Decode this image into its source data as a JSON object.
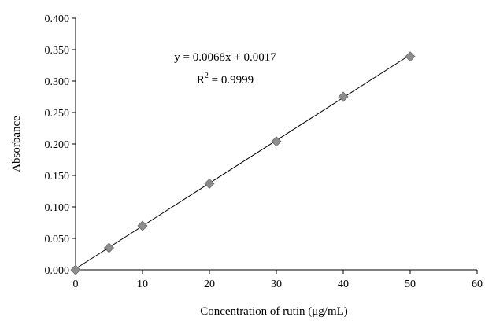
{
  "chart_data": {
    "type": "scatter",
    "xlabel": "Concentration of rutin (μg/mL)",
    "ylabel": "Absorbance",
    "xlim": [
      0,
      60
    ],
    "ylim": [
      0,
      0.4
    ],
    "x_ticks": [
      "0",
      "10",
      "20",
      "30",
      "40",
      "50",
      "60"
    ],
    "y_ticks": [
      "0.000",
      "0.050",
      "0.100",
      "0.150",
      "0.200",
      "0.250",
      "0.300",
      "0.350",
      "0.400"
    ],
    "grid": false,
    "marker_color": "#8c8c8c",
    "series": [
      {
        "x": [
          0,
          5,
          10,
          20,
          30,
          40,
          50
        ],
        "y": [
          0.0,
          0.035,
          0.07,
          0.137,
          0.204,
          0.275,
          0.339
        ]
      }
    ],
    "trendline": {
      "slope": 0.0068,
      "intercept": 0.0017
    },
    "annotations": {
      "equation": "y = 0.0068x + 0.0017",
      "r2_prefix": "R",
      "r2_exp": "2",
      "r2_value": " = 0.9999"
    }
  }
}
